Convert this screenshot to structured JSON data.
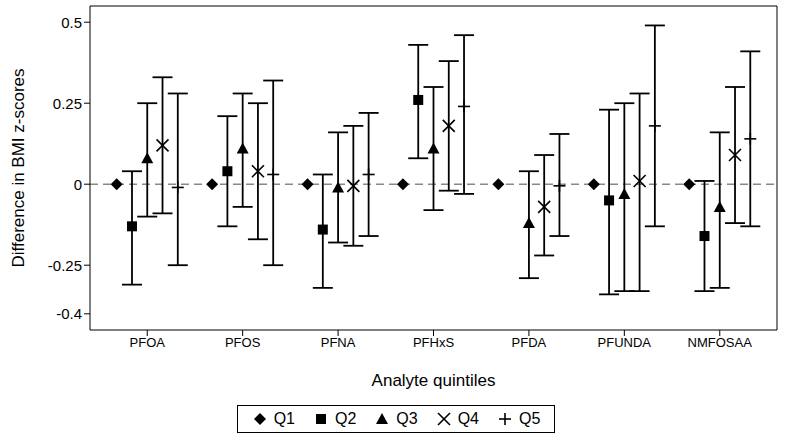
{
  "chart_data": {
    "type": "scatter",
    "x_label": "Analyte quintiles",
    "y_label": "Difference in BMI z-scores",
    "categories": [
      "PFOA",
      "PFOS",
      "PFNA",
      "PFHxS",
      "PFDA",
      "PFUNDA",
      "NMFOSAA"
    ],
    "ylim": [
      -0.45,
      0.55
    ],
    "yticks": [
      -0.4,
      -0.25,
      0,
      0.25,
      0.5
    ],
    "reference_line": 0,
    "legend": "bottom",
    "series": [
      {
        "name": "Q1",
        "marker": "diamond",
        "color": "#000000",
        "values": [
          0,
          0,
          0,
          0,
          0,
          0,
          0
        ],
        "lower": [
          null,
          null,
          null,
          null,
          null,
          null,
          null
        ],
        "upper": [
          null,
          null,
          null,
          null,
          null,
          null,
          null
        ]
      },
      {
        "name": "Q2",
        "marker": "square",
        "color": "#000000",
        "values": [
          -0.13,
          0.04,
          -0.14,
          0.26,
          null,
          -0.05,
          -0.16
        ],
        "lower": [
          -0.31,
          -0.13,
          -0.32,
          0.08,
          null,
          -0.34,
          -0.33
        ],
        "upper": [
          0.04,
          0.21,
          0.03,
          0.43,
          null,
          0.23,
          0.01
        ]
      },
      {
        "name": "Q3",
        "marker": "triangle",
        "color": "#000000",
        "values": [
          0.08,
          0.11,
          -0.01,
          0.11,
          -0.12,
          -0.03,
          -0.07
        ],
        "lower": [
          -0.1,
          -0.07,
          -0.18,
          -0.08,
          -0.29,
          -0.33,
          -0.32
        ],
        "upper": [
          0.25,
          0.28,
          0.16,
          0.3,
          0.04,
          0.25,
          0.16
        ]
      },
      {
        "name": "Q4",
        "marker": "x",
        "color": "#000000",
        "values": [
          0.12,
          0.04,
          -0.005,
          0.18,
          -0.07,
          0.01,
          0.09
        ],
        "lower": [
          -0.09,
          -0.17,
          -0.19,
          -0.02,
          -0.22,
          -0.33,
          -0.12
        ],
        "upper": [
          0.33,
          0.25,
          0.18,
          0.38,
          0.09,
          0.28,
          0.3
        ]
      },
      {
        "name": "Q5",
        "marker": "plus",
        "color": "#000000",
        "values": [
          -0.01,
          0.03,
          0.03,
          0.24,
          -0.005,
          0.18,
          0.14
        ],
        "lower": [
          -0.25,
          -0.25,
          -0.16,
          -0.03,
          -0.16,
          -0.13,
          -0.13
        ],
        "upper": [
          0.28,
          0.32,
          0.22,
          0.46,
          0.155,
          0.49,
          0.41
        ]
      }
    ]
  }
}
